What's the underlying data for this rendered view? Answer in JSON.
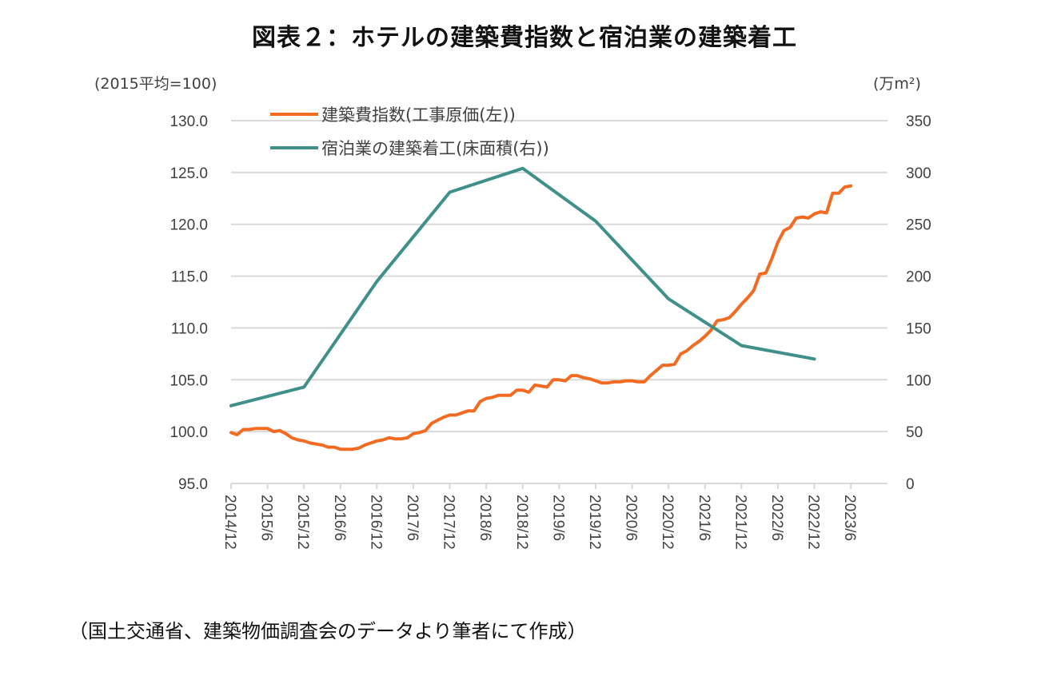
{
  "title": "図表２：ホテルの建築費指数と宿泊業の建築着工",
  "source_note": "（国土交通省、建築物価調査会のデータより筆者にて作成）",
  "chart_data": {
    "type": "line",
    "title": "図表２：ホテルの建築費指数と宿泊業の建築着工",
    "left_axis": {
      "unit_label": "(2015平均=100)",
      "range": [
        95,
        130
      ],
      "ticks": [
        95,
        100,
        105,
        110,
        115,
        120,
        125,
        130
      ],
      "tick_labels": [
        "95.0",
        "100.0",
        "105.0",
        "110.0",
        "115.0",
        "120.0",
        "125.0",
        "130.0"
      ]
    },
    "right_axis": {
      "unit_label": "(万m²)",
      "range": [
        0,
        350
      ],
      "ticks": [
        0,
        50,
        100,
        150,
        200,
        250,
        300,
        350
      ],
      "tick_labels": [
        "0",
        "50",
        "100",
        "150",
        "200",
        "250",
        "300",
        "350"
      ]
    },
    "x_axis": {
      "start": "2014/12",
      "end_month_index": 104,
      "tick_labels": [
        "2014/12",
        "2015/6",
        "2015/12",
        "2016/6",
        "2016/12",
        "2017/6",
        "2017/12",
        "2018/6",
        "2018/12",
        "2019/6",
        "2019/12",
        "2020/6",
        "2020/12",
        "2021/6",
        "2021/12",
        "2022/6",
        "2022/12",
        "2023/6"
      ]
    },
    "grid": true,
    "legend_position": "top-left",
    "series": [
      {
        "name": "建築費指数(工事原価(左))",
        "axis": "left",
        "color": "#F26B21",
        "frequency": "monthly",
        "start": "2014/12",
        "values": [
          99.9,
          99.7,
          100.2,
          100.2,
          100.3,
          100.3,
          100.3,
          100.0,
          100.1,
          99.8,
          99.4,
          99.2,
          99.1,
          98.9,
          98.8,
          98.7,
          98.5,
          98.5,
          98.3,
          98.3,
          98.3,
          98.4,
          98.7,
          98.9,
          99.1,
          99.2,
          99.4,
          99.3,
          99.3,
          99.4,
          99.8,
          99.9,
          100.1,
          100.8,
          101.1,
          101.4,
          101.6,
          101.6,
          101.8,
          102.0,
          102.0,
          102.9,
          103.2,
          103.3,
          103.5,
          103.5,
          103.5,
          104.0,
          104.0,
          103.8,
          104.5,
          104.4,
          104.3,
          105.0,
          105.0,
          104.9,
          105.4,
          105.4,
          105.2,
          105.1,
          104.9,
          104.7,
          104.7,
          104.8,
          104.8,
          104.9,
          104.9,
          104.8,
          104.8,
          105.4,
          105.9,
          106.4,
          106.4,
          106.5,
          107.5,
          107.8,
          108.3,
          108.7,
          109.2,
          109.8,
          110.7,
          110.8,
          111.0,
          111.6,
          112.3,
          112.9,
          113.6,
          115.2,
          115.3,
          116.7,
          118.3,
          119.4,
          119.7,
          120.6,
          120.7,
          120.6,
          121.0,
          121.2,
          121.1,
          123.0,
          123.0,
          123.6,
          123.7
        ]
      },
      {
        "name": "宿泊業の建築着工(床面積(右))",
        "axis": "right",
        "color": "#3F9089",
        "frequency": "annual (calendar year, plotted at December)",
        "x": [
          "2014/12",
          "2015/12",
          "2016/12",
          "2017/12",
          "2018/12",
          "2019/12",
          "2020/12",
          "2021/12",
          "2022/12"
        ],
        "values": [
          75,
          93,
          195,
          281,
          304,
          253,
          178,
          133,
          120
        ]
      }
    ]
  }
}
